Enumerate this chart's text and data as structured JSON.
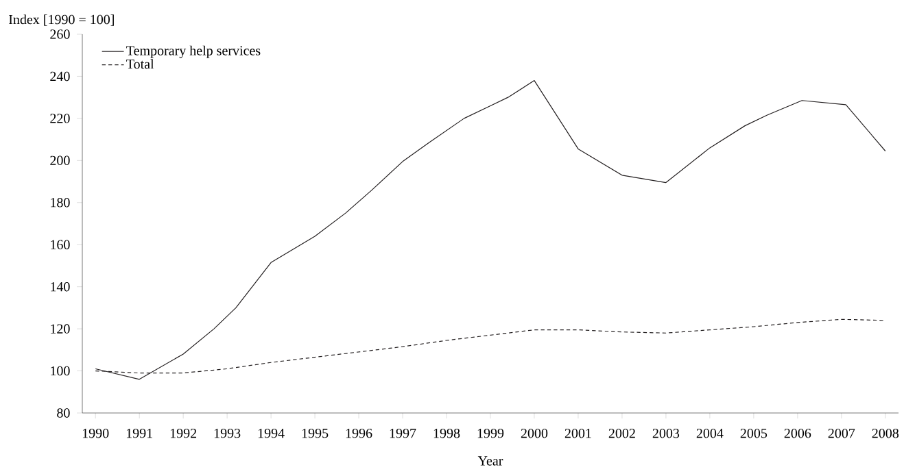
{
  "chart_data": {
    "type": "line",
    "xlabel": "Year",
    "ylabel": "Index [1990 = 100]",
    "xlim": [
      1989.7,
      2008.3
    ],
    "ylim": [
      80,
      260
    ],
    "xticks": [
      1990,
      1991,
      1992,
      1993,
      1994,
      1995,
      1996,
      1997,
      1998,
      1999,
      2000,
      2001,
      2002,
      2003,
      2004,
      2005,
      2006,
      2007,
      2008
    ],
    "yticks": [
      80,
      100,
      120,
      140,
      160,
      180,
      200,
      220,
      240,
      260
    ],
    "grid": false,
    "legend": "top left",
    "marker": "none",
    "series": [
      {
        "name": "Temporary help services",
        "color": "#231f20",
        "line_style": "solid",
        "x": [
          1990,
          1991,
          1992,
          1992.7,
          1993.2,
          1994,
          1995,
          1995.7,
          1996.3,
          1997,
          1997.6,
          1998.4,
          1999,
          1999.4,
          2000,
          2001,
          2002,
          2003,
          2004,
          2004.8,
          2005.3,
          2006.1,
          2007.1,
          2008
        ],
        "values": [
          101,
          96,
          108,
          120,
          130,
          151.5,
          164,
          175,
          186,
          199.5,
          208.5,
          220,
          226,
          230,
          238,
          205.5,
          193,
          189.5,
          206,
          216.5,
          221.5,
          228.5,
          226.5,
          204.5
        ]
      },
      {
        "name": "Total",
        "color": "#231f20",
        "line_style": "dashed",
        "x": [
          1990,
          1991,
          1992,
          1993,
          1994,
          1995,
          1996,
          1997,
          1998,
          1999,
          2000,
          2001,
          2002,
          2003,
          2004,
          2005,
          2006,
          2007,
          2008
        ],
        "values": [
          100,
          99,
          99,
          101,
          104,
          106.5,
          109,
          111.5,
          114.5,
          117,
          119.5,
          119.5,
          118.5,
          118,
          119.5,
          121,
          123,
          124.5,
          124
        ]
      }
    ]
  }
}
